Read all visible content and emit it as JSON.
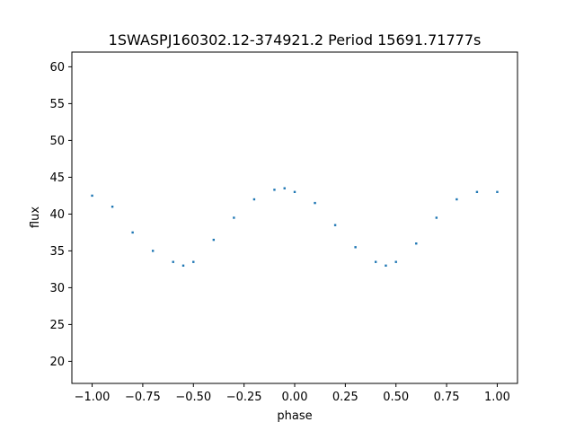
{
  "chart_data": {
    "type": "scatter",
    "title": "1SWASPJ160302.12-374921.2 Period 15691.71777s",
    "xlabel": "phase",
    "ylabel": "flux",
    "xlim": [
      -1.1,
      1.1
    ],
    "ylim": [
      17,
      62
    ],
    "xticks": [
      "−1.00",
      "−0.75",
      "−0.50",
      "−0.25",
      "0.00",
      "0.25",
      "0.50",
      "0.75",
      "1.00"
    ],
    "xtick_values": [
      -1.0,
      -0.75,
      -0.5,
      -0.25,
      0.0,
      0.25,
      0.5,
      0.75,
      1.0
    ],
    "yticks": [
      "20",
      "25",
      "30",
      "35",
      "40",
      "45",
      "50",
      "55",
      "60"
    ],
    "ytick_values": [
      20,
      25,
      30,
      35,
      40,
      45,
      50,
      55,
      60
    ],
    "grid": false,
    "point_color": "#1f77b4",
    "series": [
      {
        "x": [
          -1.0,
          -0.9,
          -0.8,
          -0.7,
          -0.6,
          -0.55,
          -0.5,
          -0.4,
          -0.3,
          -0.2,
          -0.1,
          -0.05,
          0.0,
          0.1,
          0.2,
          0.3,
          0.4,
          0.45,
          0.5,
          0.6,
          0.7,
          0.8,
          0.9,
          1.0
        ],
        "y": [
          42.5,
          41.0,
          37.5,
          35.0,
          33.5,
          33.0,
          33.5,
          36.5,
          39.5,
          42.0,
          43.3,
          43.5,
          43.0,
          41.5,
          38.5,
          35.5,
          33.5,
          33.0,
          33.5,
          36.0,
          39.5,
          42.0,
          43.0,
          43.0
        ]
      }
    ]
  }
}
